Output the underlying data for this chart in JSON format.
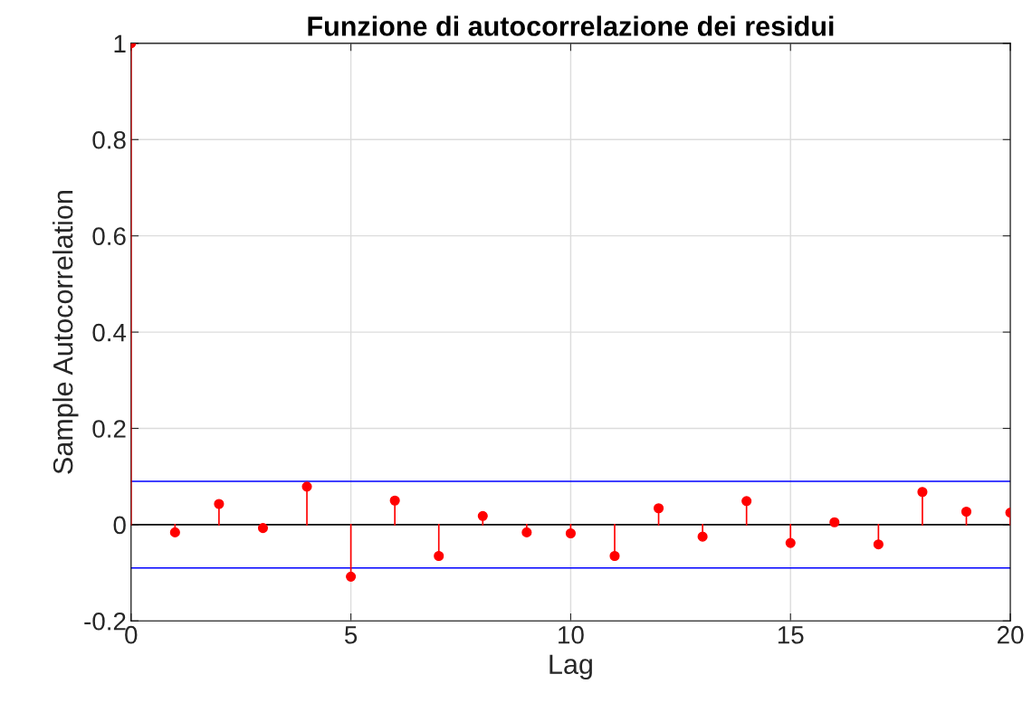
{
  "chart_data": {
    "type": "lollipop",
    "title": "Funzione di autocorrelazione dei residui",
    "xlabel": "Lag",
    "ylabel": "Sample Autocorrelation",
    "x": [
      0,
      1,
      2,
      3,
      4,
      5,
      6,
      7,
      8,
      9,
      10,
      11,
      12,
      13,
      14,
      15,
      16,
      17,
      18,
      19,
      20
    ],
    "series": [
      {
        "type": "lollipop",
        "color": "#ff0000",
        "marker": "circle",
        "values": [
          1,
          -0.016,
          0.043,
          -0.007,
          0.079,
          -0.108,
          0.05,
          -0.065,
          0.018,
          -0.016,
          -0.018,
          -0.065,
          0.034,
          -0.025,
          0.049,
          -0.038,
          0.005,
          -0.041,
          0.068,
          0.027,
          0.025
        ]
      }
    ],
    "ref_lines": [
      {
        "axis": "y",
        "value": 0,
        "color": "#000000"
      },
      {
        "axis": "y",
        "value": 0.09,
        "color": "#0000ff"
      },
      {
        "axis": "y",
        "value": -0.09,
        "color": "#0000ff"
      }
    ],
    "xlim": [
      0,
      20
    ],
    "xticks": [
      0,
      5,
      10,
      15,
      20
    ],
    "ylim": [
      -0.2,
      1
    ],
    "yticks": [
      -0.2,
      0,
      0.2,
      0.4,
      0.6,
      0.8,
      1
    ],
    "grid": true,
    "legend": false
  }
}
